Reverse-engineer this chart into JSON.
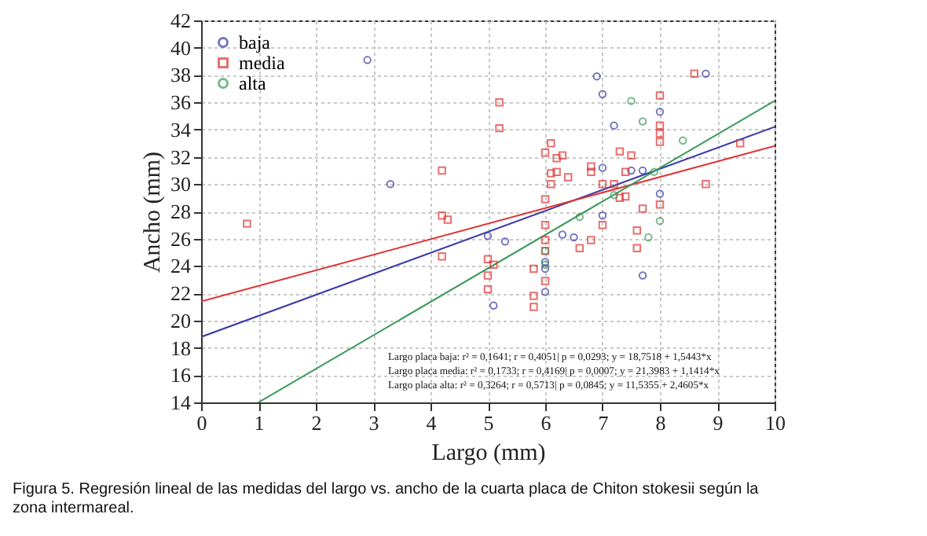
{
  "chart_data": {
    "type": "scatter",
    "xlabel": "Largo (mm)",
    "ylabel": "Ancho (mm)",
    "xlim": [
      0,
      10
    ],
    "ylim": [
      14,
      42
    ],
    "xticks": [
      0,
      1,
      2,
      3,
      4,
      5,
      6,
      7,
      8,
      9,
      10
    ],
    "yticks": [
      14,
      16,
      18,
      20,
      22,
      24,
      26,
      28,
      30,
      32,
      34,
      36,
      38,
      40,
      42
    ],
    "grid": true,
    "legend": "top left",
    "series": [
      {
        "name": "baja",
        "marker": "circle",
        "color": "#3c3ca8",
        "x": [
          2.9,
          3.3,
          5.0,
          5.3,
          6.3,
          6.9,
          7.0,
          7.2,
          8.0,
          8.8,
          7.0,
          7.5,
          7.7,
          8.0,
          7.0,
          6.5,
          6.0,
          6.0,
          7.7,
          6.0,
          5.1
        ],
        "values": [
          39.1,
          30.0,
          26.2,
          25.8,
          26.3,
          37.9,
          36.6,
          34.3,
          35.3,
          38.1,
          31.2,
          31.0,
          31.0,
          29.3,
          27.7,
          26.1,
          24.3,
          23.8,
          23.3,
          22.1,
          21.1
        ]
      },
      {
        "name": "media",
        "marker": "square",
        "color": "#e03232",
        "x": [
          0.8,
          5.2,
          5.2,
          4.2,
          4.2,
          4.3,
          4.2,
          5.0,
          5.1,
          5.0,
          6.1,
          6.0,
          6.2,
          6.1,
          6.1,
          6.0,
          5.8,
          6.3,
          6.2,
          6.4,
          6.8,
          6.8,
          7.3,
          7.5,
          7.4,
          8.0,
          8.0,
          8.0,
          8.0,
          8.6,
          9.4,
          8.8,
          7.0,
          7.2,
          7.3,
          7.4,
          7.7,
          8.0,
          7.0,
          7.6,
          6.8,
          6.6,
          7.6,
          6.0,
          6.0,
          6.0,
          5.0,
          5.8,
          5.8,
          6.0
        ],
        "values": [
          27.1,
          36.0,
          34.1,
          31.0,
          27.7,
          27.4,
          24.7,
          24.5,
          24.1,
          23.3,
          33.0,
          32.3,
          31.9,
          30.8,
          30.0,
          28.9,
          23.8,
          32.1,
          30.9,
          30.5,
          31.3,
          30.9,
          32.4,
          32.1,
          30.9,
          36.5,
          34.3,
          33.7,
          33.1,
          38.1,
          33.0,
          30.0,
          30.0,
          30.0,
          29.0,
          29.1,
          28.2,
          28.5,
          27.0,
          26.6,
          25.9,
          25.3,
          25.3,
          27.0,
          25.9,
          25.1,
          22.3,
          21.8,
          21.0,
          22.9
        ]
      },
      {
        "name": "alta",
        "marker": "circle",
        "color": "#3a9a5a",
        "x": [
          7.5,
          7.7,
          8.4,
          7.9,
          7.2,
          6.6,
          8.0,
          7.8,
          6.0,
          6.0
        ],
        "values": [
          36.1,
          34.6,
          33.2,
          30.9,
          29.2,
          27.6,
          27.3,
          26.1,
          25.1,
          24.1
        ]
      },
      {
        "type": "line",
        "color": "#3c3ca8",
        "x": [
          0,
          10
        ],
        "values": [
          18.8,
          34.2
        ]
      },
      {
        "type": "line",
        "color": "#e03232",
        "x": [
          0,
          10
        ],
        "values": [
          21.4,
          32.8
        ]
      },
      {
        "type": "line",
        "color": "#3a9a5a",
        "x": [
          1.0,
          10
        ],
        "values": [
          14.0,
          36.1
        ]
      }
    ],
    "annotations": [
      "Largo placa baja:  r² = 0,1641;  r = 0,4051| p = 0,0293;  y = 18,7518 + 1,5443*x",
      "Largo placa media:  r² = 0,1733;  r = 0,4169| p = 0,0007;  y = 21,3983 + 1,1414*x",
      "Largo placa alta:  r² = 0,3264;  r = 0,5713| p = 0,0845;  y = 11,5355 + 2,4605*x",
      "Figura 5. Regresión lineal de las medidas del largo vs. ancho de la cuarta placa de Chiton stokesii según la zona intermareal."
    ]
  }
}
